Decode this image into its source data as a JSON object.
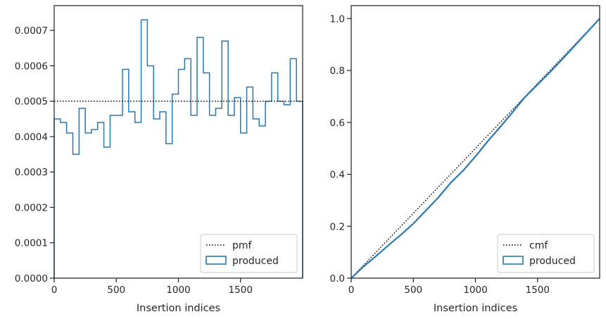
{
  "chart_data": [
    {
      "type": "histogram",
      "xlabel": "Insertion indices",
      "ylabel": "",
      "xlim": [
        0,
        2000
      ],
      "ylim": [
        0,
        0.00077
      ],
      "xticks": [
        0,
        500,
        1000,
        1500
      ],
      "yticks": [
        0.0,
        0.0001,
        0.0002,
        0.0003,
        0.0004,
        0.0005,
        0.0006,
        0.0007
      ],
      "xtick_labels": [
        "0",
        "500",
        "1000",
        "1500"
      ],
      "ytick_labels": [
        "0.0000",
        "0.0001",
        "0.0002",
        "0.0003",
        "0.0004",
        "0.0005",
        "0.0006",
        "0.0007"
      ],
      "grid": false,
      "legend_position": "lower right",
      "reference_line": {
        "name": "pmf",
        "value": 0.0005,
        "style": "dotted",
        "color": "#000000"
      },
      "series": [
        {
          "name": "produced",
          "color": "#2878b5",
          "bin_width": 50,
          "bin_starts": [
            0,
            50,
            100,
            150,
            200,
            250,
            300,
            350,
            400,
            450,
            500,
            550,
            600,
            650,
            700,
            750,
            800,
            850,
            900,
            950,
            1000,
            1050,
            1100,
            1150,
            1200,
            1250,
            1300,
            1350,
            1400,
            1450,
            1500,
            1550,
            1600,
            1650,
            1700,
            1750,
            1800,
            1850,
            1900,
            1950
          ],
          "values": [
            0.00045,
            0.00044,
            0.00041,
            0.00035,
            0.00048,
            0.00041,
            0.00042,
            0.00044,
            0.00037,
            0.00046,
            0.00046,
            0.00059,
            0.00047,
            0.00044,
            0.00073,
            0.0006,
            0.00045,
            0.00047,
            0.00038,
            0.00052,
            0.00059,
            0.00062,
            0.00046,
            0.00068,
            0.00058,
            0.00046,
            0.00048,
            0.00067,
            0.00046,
            0.00051,
            0.00041,
            0.00054,
            0.00045,
            0.00043,
            0.0005,
            0.00058,
            0.0005,
            0.00049,
            0.00062,
            0.0005
          ]
        }
      ]
    },
    {
      "type": "line",
      "xlabel": "Insertion indices",
      "ylabel": "",
      "xlim": [
        0,
        2000
      ],
      "ylim": [
        0,
        1.05
      ],
      "xticks": [
        0,
        500,
        1000,
        1500
      ],
      "yticks": [
        0.0,
        0.2,
        0.4,
        0.6,
        0.8,
        1.0
      ],
      "xtick_labels": [
        "0",
        "500",
        "1000",
        "1500"
      ],
      "ytick_labels": [
        "0.0",
        "0.2",
        "0.4",
        "0.6",
        "0.8",
        "1.0"
      ],
      "grid": false,
      "legend_position": "lower right",
      "series": [
        {
          "name": "cmf",
          "style": "dotted",
          "color": "#000000",
          "x": [
            0,
            2000
          ],
          "y": [
            0.0,
            1.0
          ]
        },
        {
          "name": "produced",
          "style": "solid",
          "color": "#2878b5",
          "x": [
            0,
            100,
            200,
            300,
            400,
            500,
            600,
            700,
            800,
            900,
            1000,
            1100,
            1200,
            1300,
            1400,
            1500,
            1600,
            1700,
            1800,
            1900,
            2000
          ],
          "y": [
            0.0,
            0.045,
            0.085,
            0.127,
            0.167,
            0.21,
            0.26,
            0.31,
            0.367,
            0.414,
            0.469,
            0.528,
            0.583,
            0.64,
            0.698,
            0.746,
            0.794,
            0.844,
            0.896,
            0.948,
            1.0
          ]
        }
      ]
    }
  ]
}
